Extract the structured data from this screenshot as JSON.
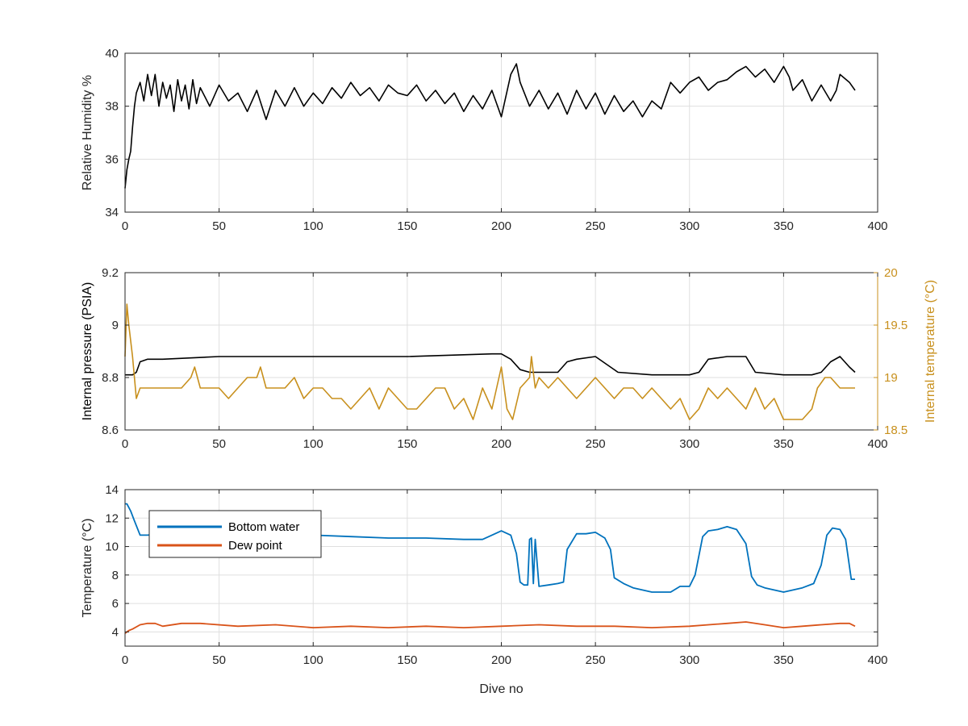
{
  "chart_data": [
    {
      "type": "line",
      "xlabel": "",
      "ylabel": "Relative Humidity %",
      "xlim": [
        0,
        400
      ],
      "ylim": [
        34,
        40
      ],
      "xticks": [
        0,
        50,
        100,
        150,
        200,
        250,
        300,
        350,
        400
      ],
      "yticks": [
        34,
        36,
        38,
        40
      ],
      "grid": true,
      "series": [
        {
          "color": "#000000",
          "x": [
            0,
            1,
            2,
            3,
            4,
            5,
            6,
            8,
            10,
            12,
            14,
            16,
            18,
            20,
            22,
            24,
            26,
            28,
            30,
            32,
            34,
            36,
            38,
            40,
            45,
            50,
            55,
            60,
            65,
            70,
            75,
            80,
            85,
            90,
            95,
            100,
            105,
            110,
            115,
            120,
            125,
            130,
            135,
            140,
            145,
            150,
            155,
            160,
            165,
            170,
            175,
            180,
            185,
            190,
            195,
            200,
            205,
            208,
            210,
            215,
            220,
            225,
            230,
            235,
            240,
            245,
            250,
            255,
            260,
            265,
            270,
            275,
            280,
            285,
            290,
            295,
            300,
            305,
            310,
            315,
            320,
            325,
            330,
            335,
            340,
            345,
            350,
            353,
            355,
            360,
            365,
            370,
            375,
            378,
            380,
            385,
            388
          ],
          "y": [
            34.9,
            35.6,
            36.0,
            36.3,
            37.2,
            38.0,
            38.5,
            38.9,
            38.2,
            39.2,
            38.4,
            39.2,
            38.0,
            38.9,
            38.3,
            38.8,
            37.8,
            39.0,
            38.2,
            38.8,
            37.9,
            39.0,
            38.1,
            38.7,
            38.0,
            38.8,
            38.2,
            38.5,
            37.8,
            38.6,
            37.5,
            38.6,
            38.0,
            38.7,
            38.0,
            38.5,
            38.1,
            38.7,
            38.3,
            38.9,
            38.4,
            38.7,
            38.2,
            38.8,
            38.5,
            38.4,
            38.8,
            38.2,
            38.6,
            38.1,
            38.5,
            37.8,
            38.4,
            37.9,
            38.6,
            37.6,
            39.2,
            39.6,
            38.9,
            38.0,
            38.6,
            37.9,
            38.5,
            37.7,
            38.6,
            37.9,
            38.5,
            37.7,
            38.4,
            37.8,
            38.2,
            37.6,
            38.2,
            37.9,
            38.9,
            38.5,
            38.9,
            39.1,
            38.6,
            38.9,
            39.0,
            39.3,
            39.5,
            39.1,
            39.4,
            38.9,
            39.5,
            39.1,
            38.6,
            39.0,
            38.2,
            38.8,
            38.2,
            38.6,
            39.2,
            38.9,
            38.6
          ]
        }
      ]
    },
    {
      "type": "line",
      "xlabel": "",
      "ylabel": "Internal pressure (PSIA)",
      "ylabel_right": "Internal temperature (°C)",
      "xlim": [
        0,
        400
      ],
      "ylim": [
        8.6,
        9.2
      ],
      "ylim_right": [
        18.5,
        20
      ],
      "xticks": [
        0,
        50,
        100,
        150,
        200,
        250,
        300,
        350,
        400
      ],
      "yticks": [
        8.6,
        8.8,
        9,
        9.2
      ],
      "yticks_right": [
        18.5,
        19,
        19.5,
        20
      ],
      "grid": true,
      "series": [
        {
          "color": "#000000",
          "axis": "left",
          "x": [
            0,
            2,
            4,
            6,
            8,
            12,
            20,
            50,
            100,
            150,
            195,
            200,
            205,
            210,
            215,
            230,
            235,
            240,
            250,
            258,
            262,
            280,
            290,
            300,
            305,
            310,
            320,
            330,
            335,
            350,
            365,
            370,
            375,
            380,
            385,
            388
          ],
          "y": [
            8.81,
            8.81,
            8.81,
            8.82,
            8.86,
            8.87,
            8.87,
            8.88,
            8.88,
            8.88,
            8.89,
            8.89,
            8.87,
            8.83,
            8.82,
            8.82,
            8.86,
            8.87,
            8.88,
            8.84,
            8.82,
            8.81,
            8.81,
            8.81,
            8.82,
            8.87,
            8.88,
            8.88,
            8.82,
            8.81,
            8.81,
            8.82,
            8.86,
            8.88,
            8.84,
            8.82
          ]
        },
        {
          "color": "#c8901d",
          "axis": "right",
          "x": [
            0,
            1,
            2,
            4,
            6,
            8,
            10,
            15,
            20,
            25,
            30,
            35,
            37,
            40,
            45,
            50,
            55,
            60,
            65,
            70,
            72,
            75,
            80,
            85,
            90,
            95,
            100,
            105,
            110,
            115,
            120,
            125,
            130,
            135,
            140,
            145,
            150,
            155,
            160,
            165,
            170,
            175,
            180,
            185,
            190,
            195,
            200,
            203,
            206,
            210,
            215,
            216,
            218,
            220,
            225,
            230,
            235,
            240,
            245,
            250,
            255,
            260,
            265,
            270,
            275,
            280,
            285,
            290,
            295,
            300,
            305,
            310,
            315,
            320,
            325,
            330,
            335,
            340,
            345,
            350,
            355,
            360,
            365,
            368,
            372,
            375,
            380,
            385,
            388
          ],
          "y": [
            19.2,
            19.7,
            19.5,
            19.2,
            18.8,
            18.9,
            18.9,
            18.9,
            18.9,
            18.9,
            18.9,
            19.0,
            19.1,
            18.9,
            18.9,
            18.9,
            18.8,
            18.9,
            19.0,
            19.0,
            19.1,
            18.9,
            18.9,
            18.9,
            19.0,
            18.8,
            18.9,
            18.9,
            18.8,
            18.8,
            18.7,
            18.8,
            18.9,
            18.7,
            18.9,
            18.8,
            18.7,
            18.7,
            18.8,
            18.9,
            18.9,
            18.7,
            18.8,
            18.6,
            18.9,
            18.7,
            19.1,
            18.7,
            18.6,
            18.9,
            19.0,
            19.2,
            18.9,
            19.0,
            18.9,
            19.0,
            18.9,
            18.8,
            18.9,
            19.0,
            18.9,
            18.8,
            18.9,
            18.9,
            18.8,
            18.9,
            18.8,
            18.7,
            18.8,
            18.6,
            18.7,
            18.9,
            18.8,
            18.9,
            18.8,
            18.7,
            18.9,
            18.7,
            18.8,
            18.6,
            18.6,
            18.6,
            18.7,
            18.9,
            19.0,
            19.0,
            18.9,
            18.9,
            18.9
          ]
        }
      ]
    },
    {
      "type": "line",
      "xlabel": "Dive no",
      "ylabel": "Temperature (°C)",
      "xlim": [
        0,
        400
      ],
      "ylim": [
        3,
        14
      ],
      "xticks": [
        0,
        50,
        100,
        150,
        200,
        250,
        300,
        350,
        400
      ],
      "yticks": [
        4,
        6,
        8,
        10,
        12,
        14
      ],
      "grid": true,
      "legend": "top-left",
      "series": [
        {
          "name": "Bottom water",
          "color": "#0072bd",
          "x": [
            0,
            1,
            3,
            5,
            8,
            12,
            20,
            40,
            60,
            80,
            100,
            120,
            140,
            160,
            180,
            190,
            195,
            200,
            205,
            208,
            210,
            212,
            214,
            215,
            216,
            217,
            218,
            220,
            225,
            230,
            233,
            235,
            240,
            245,
            250,
            255,
            258,
            260,
            265,
            270,
            280,
            290,
            295,
            300,
            303,
            307,
            310,
            315,
            320,
            325,
            330,
            333,
            336,
            340,
            350,
            360,
            366,
            370,
            373,
            376,
            380,
            383,
            386,
            388
          ],
          "y": [
            13.0,
            13.0,
            12.5,
            11.8,
            10.8,
            10.8,
            10.9,
            11.0,
            10.9,
            10.7,
            10.8,
            10.7,
            10.6,
            10.6,
            10.5,
            10.5,
            10.8,
            11.1,
            10.8,
            9.5,
            7.5,
            7.3,
            7.3,
            10.5,
            10.6,
            7.4,
            10.5,
            7.2,
            7.3,
            7.4,
            7.5,
            9.8,
            10.9,
            10.9,
            11.0,
            10.6,
            9.8,
            7.8,
            7.4,
            7.1,
            6.8,
            6.8,
            7.2,
            7.2,
            8.0,
            10.7,
            11.1,
            11.2,
            11.4,
            11.2,
            10.2,
            7.9,
            7.3,
            7.1,
            6.8,
            7.1,
            7.4,
            8.7,
            10.8,
            11.3,
            11.2,
            10.5,
            7.7,
            7.7
          ]
        },
        {
          "name": "Dew point",
          "color": "#d95319",
          "x": [
            0,
            2,
            4,
            8,
            12,
            16,
            20,
            30,
            40,
            60,
            80,
            100,
            120,
            140,
            160,
            180,
            200,
            220,
            240,
            260,
            280,
            300,
            320,
            330,
            340,
            350,
            360,
            370,
            380,
            385,
            388
          ],
          "y": [
            3.9,
            4.1,
            4.2,
            4.5,
            4.6,
            4.6,
            4.4,
            4.6,
            4.6,
            4.4,
            4.5,
            4.3,
            4.4,
            4.3,
            4.4,
            4.3,
            4.4,
            4.5,
            4.4,
            4.4,
            4.3,
            4.4,
            4.6,
            4.7,
            4.5,
            4.3,
            4.4,
            4.5,
            4.6,
            4.6,
            4.4
          ]
        }
      ]
    }
  ]
}
